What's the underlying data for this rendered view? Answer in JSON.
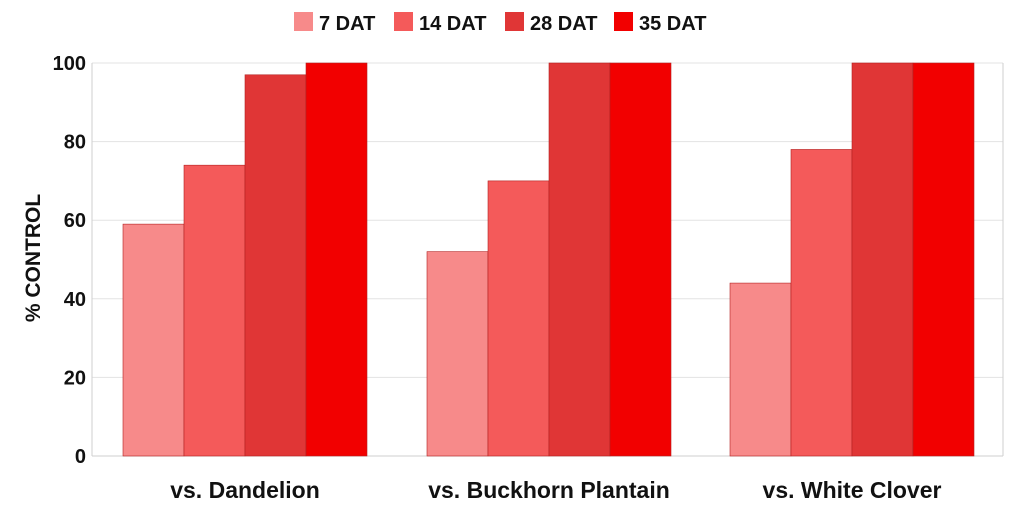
{
  "chart_data": {
    "type": "bar",
    "title": "",
    "xlabel": "",
    "ylabel": "% CONTROL",
    "ylim": [
      0,
      100
    ],
    "yticks": [
      "0",
      "20",
      "40",
      "60",
      "80",
      "100"
    ],
    "grid": true,
    "legend_position": "top",
    "categories": [
      "vs. Dandelion",
      "vs. Buckhorn Plantain",
      "vs. White Clover"
    ],
    "series": [
      {
        "name": "7 DAT",
        "color": "#f78a8a",
        "values": [
          59,
          52,
          44
        ]
      },
      {
        "name": "14 DAT",
        "color": "#f45a5a",
        "values": [
          74,
          70,
          78
        ]
      },
      {
        "name": "28 DAT",
        "color": "#e03636",
        "values": [
          97,
          100,
          100
        ]
      },
      {
        "name": "35 DAT",
        "color": "#f20000",
        "values": [
          100,
          100,
          100
        ]
      }
    ]
  }
}
